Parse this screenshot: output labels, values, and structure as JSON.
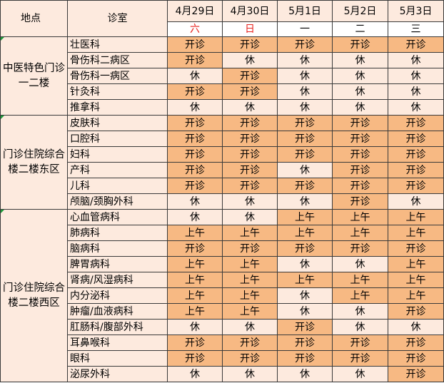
{
  "header": {
    "location": "地点",
    "department": "诊室",
    "dates": [
      "4月29日",
      "4月30日",
      "5月1日",
      "5月2日",
      "5月3日"
    ],
    "weekdays": [
      "六",
      "日",
      "一",
      "二",
      "三"
    ],
    "weekday_red": [
      true,
      true,
      false,
      false,
      false
    ]
  },
  "colors": {
    "open": "#f7b983",
    "closed": "#fdeade",
    "weekend_red": "#e8211b",
    "grid": "#3a3a3a"
  },
  "groups": [
    {
      "location": "中医特色门诊一二楼",
      "rows": [
        {
          "dept": "壮医科",
          "cells": [
            "开诊",
            "开诊",
            "开诊",
            "开诊",
            "开诊"
          ]
        },
        {
          "dept": "骨伤科二病区",
          "cells": [
            "开诊",
            "休",
            "休",
            "休",
            "休"
          ]
        },
        {
          "dept": "骨伤科一病区",
          "cells": [
            "休",
            "开诊",
            "休",
            "休",
            "休"
          ]
        },
        {
          "dept": "针灸科",
          "cells": [
            "开诊",
            "开诊",
            "休",
            "休",
            "休"
          ]
        },
        {
          "dept": "推拿科",
          "cells": [
            "休",
            "休",
            "休",
            "休",
            "休"
          ]
        }
      ]
    },
    {
      "location": "门诊住院综合楼二楼东区",
      "rows": [
        {
          "dept": "皮肤科",
          "cells": [
            "开诊",
            "开诊",
            "开诊",
            "开诊",
            "开诊"
          ]
        },
        {
          "dept": "口腔科",
          "cells": [
            "开诊",
            "开诊",
            "开诊",
            "开诊",
            "开诊"
          ]
        },
        {
          "dept": "妇科",
          "cells": [
            "开诊",
            "开诊",
            "开诊",
            "开诊",
            "开诊"
          ]
        },
        {
          "dept": "产科",
          "cells": [
            "开诊",
            "开诊",
            "休",
            "开诊",
            "开诊"
          ]
        },
        {
          "dept": "儿科",
          "cells": [
            "开诊",
            "开诊",
            "开诊",
            "开诊",
            "开诊"
          ]
        },
        {
          "dept": "颅脑/颈胸外科",
          "cells": [
            "休",
            "休",
            "休",
            "开诊",
            "休"
          ]
        }
      ]
    },
    {
      "location": "门诊住院综合楼二楼西区",
      "rows": [
        {
          "dept": "心血管病科",
          "cells": [
            "休",
            "休",
            "上午",
            "上午",
            "上午"
          ]
        },
        {
          "dept": "肺病科",
          "cells": [
            "上午",
            "上午",
            "上午",
            "上午",
            "上午"
          ]
        },
        {
          "dept": "脑病科",
          "cells": [
            "开诊",
            "开诊",
            "开诊",
            "开诊",
            "开诊"
          ]
        },
        {
          "dept": "脾胃病科",
          "cells": [
            "上午",
            "上午",
            "休",
            "休",
            "上午"
          ]
        },
        {
          "dept": "肾病/风湿病科",
          "cells": [
            "上午",
            "上午",
            "上午",
            "上午",
            "上午"
          ]
        },
        {
          "dept": "内分泌科",
          "cells": [
            "上午",
            "上午",
            "休",
            "上午",
            "上午"
          ]
        },
        {
          "dept": "肿瘤/血液病科",
          "cells": [
            "上午",
            "上午",
            "休",
            "休",
            "开诊"
          ]
        },
        {
          "dept": "肛肠科/腹部外科",
          "cells": [
            "休",
            "休",
            "开诊",
            "休",
            "休"
          ]
        },
        {
          "dept": "耳鼻喉科",
          "cells": [
            "开诊",
            "开诊",
            "开诊",
            "开诊",
            "开诊"
          ]
        },
        {
          "dept": "眼科",
          "cells": [
            "开诊",
            "开诊",
            "开诊",
            "开诊",
            "开诊"
          ]
        },
        {
          "dept": "泌尿外科",
          "cells": [
            "休",
            "休",
            "休",
            "休",
            "开诊"
          ]
        }
      ]
    }
  ]
}
